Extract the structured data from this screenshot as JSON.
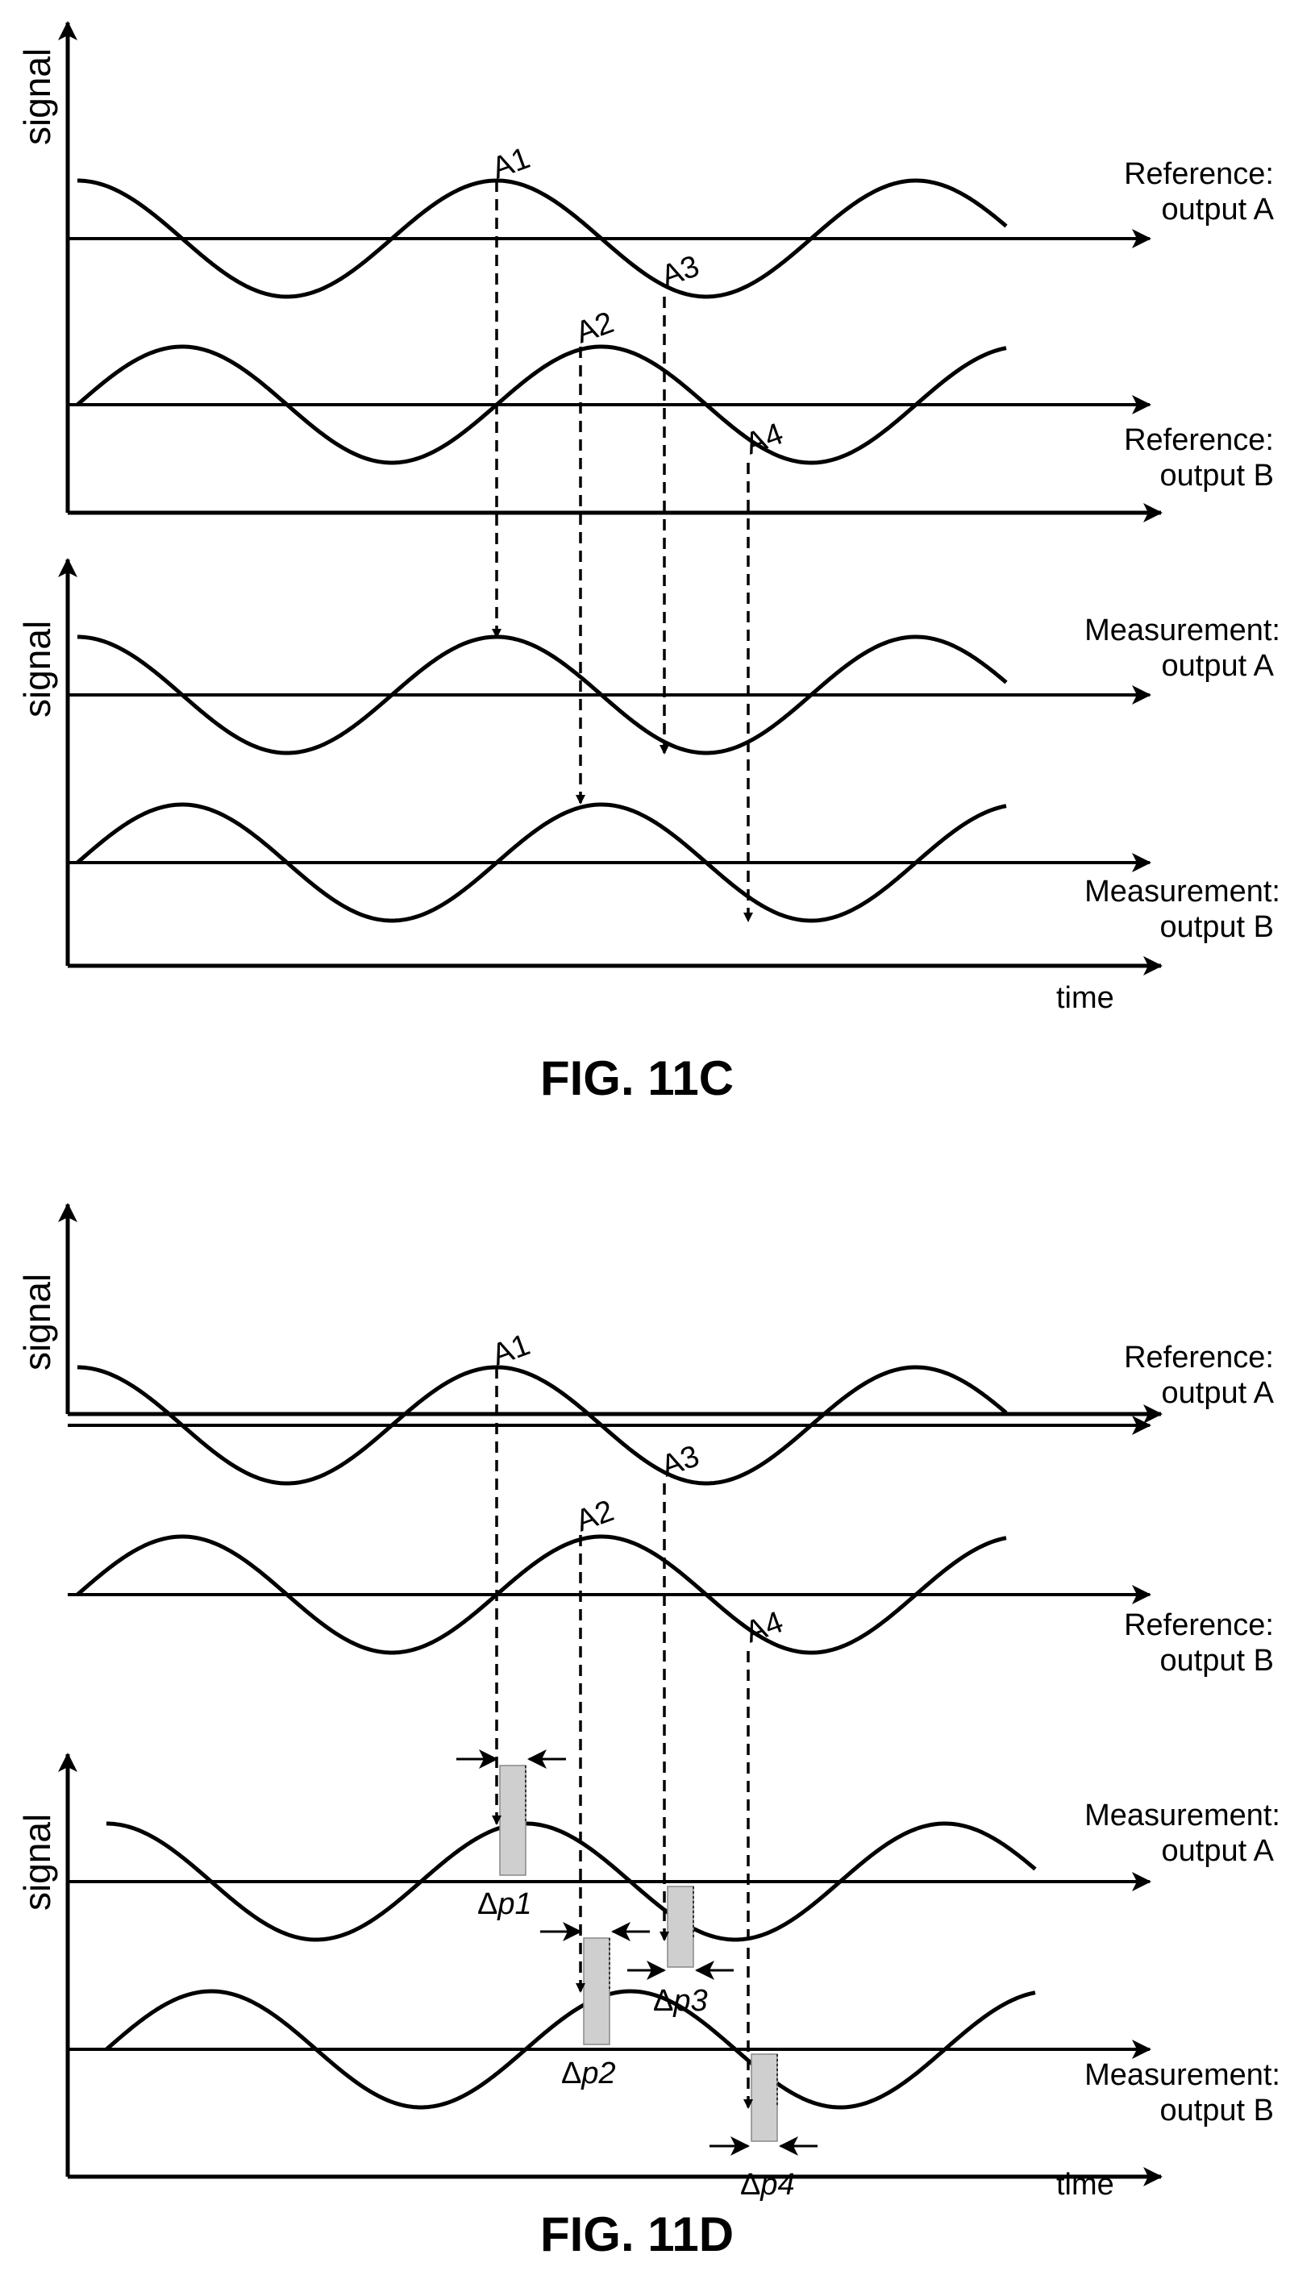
{
  "figures": {
    "c": {
      "title": "FIG. 11C"
    },
    "d": {
      "title": "FIG. 11D"
    }
  },
  "axes": {
    "ylabel": "signal",
    "xlabel": "time"
  },
  "traces": {
    "ref_a": {
      "line1": "Reference:",
      "line2": "output A"
    },
    "ref_b": {
      "line1": "Reference:",
      "line2": "output B"
    },
    "meas_a": {
      "line1": "Measurement:",
      "line2": "output A"
    },
    "meas_b": {
      "line1": "Measurement:",
      "line2": "output B"
    }
  },
  "markers": [
    "A1",
    "A2",
    "A3",
    "A4"
  ],
  "phase_shifts": {
    "p1": {
      "delta": "Δ",
      "sym": "p1"
    },
    "p2": {
      "delta": "Δ",
      "sym": "p2"
    },
    "p3": {
      "delta": "Δ",
      "sym": "p3"
    },
    "p4": {
      "delta": "Δ",
      "sym": "p4"
    }
  }
}
